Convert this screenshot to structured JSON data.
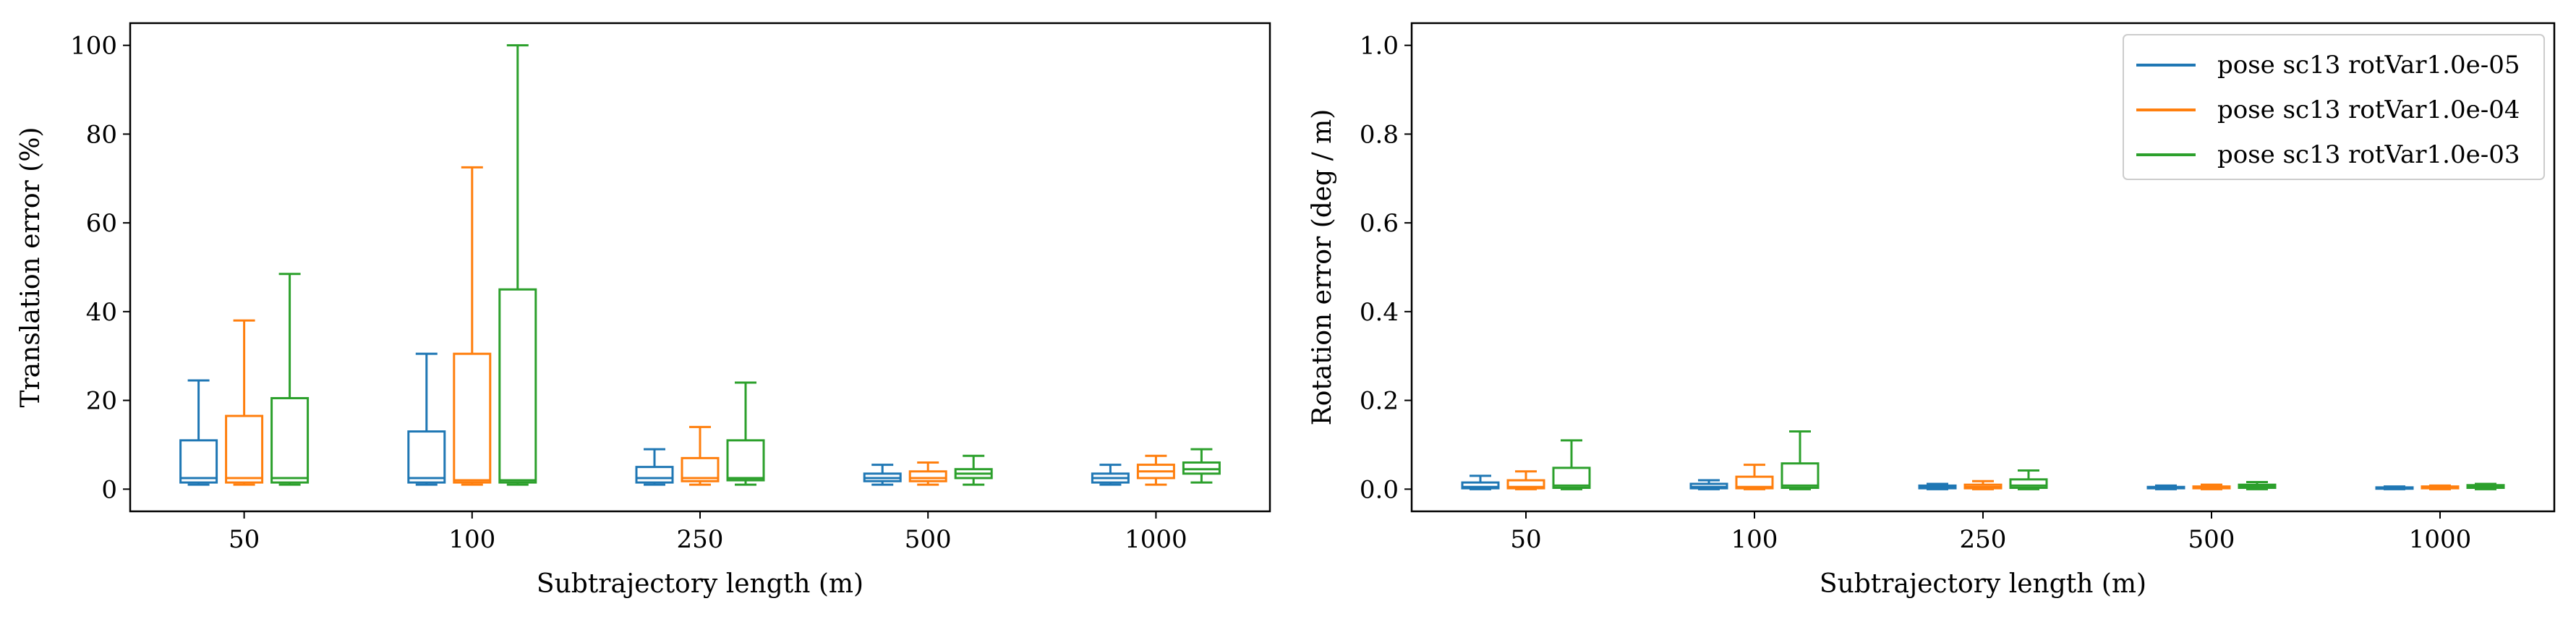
{
  "colors": {
    "series_1": "#1f77b4",
    "series_2": "#ff7f0e",
    "series_3": "#2ca02c"
  },
  "chart_data": [
    {
      "type": "box",
      "xlabel": "Subtrajectory length (m)",
      "ylabel": "Translation error (%)",
      "categories": [
        "50",
        "100",
        "250",
        "500",
        "1000"
      ],
      "ylim": [
        -5,
        105
      ],
      "yticks": [
        0,
        20,
        40,
        60,
        80,
        100
      ],
      "ytick_labels": [
        "0",
        "20",
        "40",
        "60",
        "80",
        "100"
      ],
      "grid": false,
      "series": [
        {
          "name": "pose sc13 rotVar1.0e-05",
          "boxes": [
            {
              "whislo": 1.0,
              "q1": 1.5,
              "med": 2.5,
              "q3": 11.0,
              "whishi": 24.5
            },
            {
              "whislo": 1.0,
              "q1": 1.5,
              "med": 2.5,
              "q3": 13.0,
              "whishi": 30.5
            },
            {
              "whislo": 1.0,
              "q1": 1.5,
              "med": 2.5,
              "q3": 5.0,
              "whishi": 9.0
            },
            {
              "whislo": 1.0,
              "q1": 1.8,
              "med": 2.5,
              "q3": 3.5,
              "whishi": 5.5
            },
            {
              "whislo": 1.0,
              "q1": 1.5,
              "med": 2.5,
              "q3": 3.5,
              "whishi": 5.5
            }
          ]
        },
        {
          "name": "pose sc13 rotVar1.0e-04",
          "boxes": [
            {
              "whislo": 1.0,
              "q1": 1.5,
              "med": 2.5,
              "q3": 16.5,
              "whishi": 38.0
            },
            {
              "whislo": 1.0,
              "q1": 1.5,
              "med": 2.0,
              "q3": 30.5,
              "whishi": 72.5
            },
            {
              "whislo": 1.0,
              "q1": 1.8,
              "med": 2.5,
              "q3": 7.0,
              "whishi": 14.0
            },
            {
              "whislo": 1.0,
              "q1": 1.8,
              "med": 2.5,
              "q3": 4.0,
              "whishi": 6.0
            },
            {
              "whislo": 1.0,
              "q1": 2.5,
              "med": 4.0,
              "q3": 5.5,
              "whishi": 7.5
            }
          ]
        },
        {
          "name": "pose sc13 rotVar1.0e-03",
          "boxes": [
            {
              "whislo": 1.0,
              "q1": 1.5,
              "med": 2.5,
              "q3": 20.5,
              "whishi": 48.5
            },
            {
              "whislo": 1.0,
              "q1": 1.5,
              "med": 2.0,
              "q3": 45.0,
              "whishi": 100.0
            },
            {
              "whislo": 1.0,
              "q1": 2.0,
              "med": 2.5,
              "q3": 11.0,
              "whishi": 24.0
            },
            {
              "whislo": 1.0,
              "q1": 2.5,
              "med": 3.5,
              "q3": 4.5,
              "whishi": 7.5
            },
            {
              "whislo": 1.5,
              "q1": 3.5,
              "med": 4.5,
              "q3": 6.0,
              "whishi": 9.0
            }
          ]
        }
      ]
    },
    {
      "type": "box",
      "xlabel": "Subtrajectory length (m)",
      "ylabel": "Rotation error (deg / m)",
      "categories": [
        "50",
        "100",
        "250",
        "500",
        "1000"
      ],
      "ylim": [
        -0.05,
        1.05
      ],
      "yticks": [
        0.0,
        0.2,
        0.4,
        0.6,
        0.8,
        1.0
      ],
      "ytick_labels": [
        "0.0",
        "0.2",
        "0.4",
        "0.6",
        "0.8",
        "1.0"
      ],
      "grid": false,
      "legend": "top-right",
      "series": [
        {
          "name": "pose sc13 rotVar1.0e-05",
          "boxes": [
            {
              "whislo": 0.0,
              "q1": 0.002,
              "med": 0.005,
              "q3": 0.015,
              "whishi": 0.03
            },
            {
              "whislo": 0.0,
              "q1": 0.002,
              "med": 0.005,
              "q3": 0.012,
              "whishi": 0.02
            },
            {
              "whislo": 0.0,
              "q1": 0.002,
              "med": 0.004,
              "q3": 0.008,
              "whishi": 0.012
            },
            {
              "whislo": 0.0,
              "q1": 0.002,
              "med": 0.003,
              "q3": 0.005,
              "whishi": 0.008
            },
            {
              "whislo": 0.0,
              "q1": 0.001,
              "med": 0.003,
              "q3": 0.004,
              "whishi": 0.006
            }
          ]
        },
        {
          "name": "pose sc13 rotVar1.0e-04",
          "boxes": [
            {
              "whislo": 0.0,
              "q1": 0.002,
              "med": 0.005,
              "q3": 0.02,
              "whishi": 0.04
            },
            {
              "whislo": 0.0,
              "q1": 0.002,
              "med": 0.005,
              "q3": 0.028,
              "whishi": 0.055
            },
            {
              "whislo": 0.0,
              "q1": 0.002,
              "med": 0.005,
              "q3": 0.01,
              "whishi": 0.018
            },
            {
              "whislo": 0.0,
              "q1": 0.002,
              "med": 0.004,
              "q3": 0.006,
              "whishi": 0.01
            },
            {
              "whislo": 0.0,
              "q1": 0.002,
              "med": 0.004,
              "q3": 0.006,
              "whishi": 0.008
            }
          ]
        },
        {
          "name": "pose sc13 rotVar1.0e-03",
          "boxes": [
            {
              "whislo": 0.0,
              "q1": 0.003,
              "med": 0.008,
              "q3": 0.048,
              "whishi": 0.11
            },
            {
              "whislo": 0.0,
              "q1": 0.003,
              "med": 0.008,
              "q3": 0.058,
              "whishi": 0.13
            },
            {
              "whislo": 0.0,
              "q1": 0.003,
              "med": 0.008,
              "q3": 0.022,
              "whishi": 0.042
            },
            {
              "whislo": 0.0,
              "q1": 0.003,
              "med": 0.006,
              "q3": 0.01,
              "whishi": 0.016
            },
            {
              "whislo": 0.0,
              "q1": 0.003,
              "med": 0.006,
              "q3": 0.009,
              "whishi": 0.012
            }
          ]
        }
      ]
    }
  ]
}
